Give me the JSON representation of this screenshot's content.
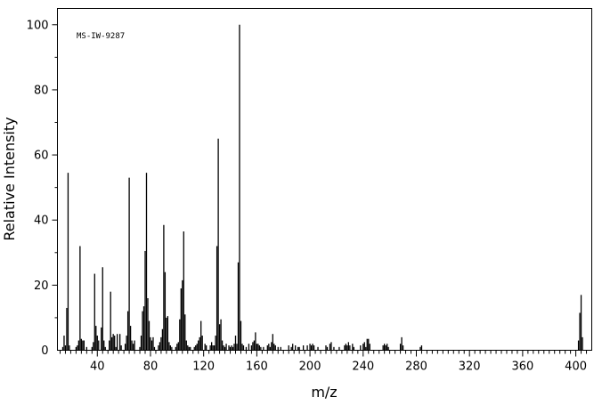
{
  "chart_data": {
    "type": "bar",
    "title": "",
    "annotation": "MS-IW-9287",
    "xlabel": "m/z",
    "ylabel": "Relative Intensity",
    "xlim": [
      10,
      412
    ],
    "ylim": [
      0,
      105
    ],
    "x_ticks": [
      40,
      80,
      120,
      160,
      200,
      240,
      280,
      320,
      360,
      400
    ],
    "x_tick_labels": [
      "40",
      "80",
      "120",
      "160",
      "200",
      "240",
      "280",
      "320",
      "360",
      "400"
    ],
    "y_ticks": [
      0,
      20,
      40,
      60,
      80,
      100
    ],
    "y_tick_labels": [
      "0",
      "20",
      "40",
      "60",
      "80",
      "100"
    ],
    "grid": false,
    "legend": "none",
    "peaks": [
      [
        14,
        1
      ],
      [
        15,
        4.5
      ],
      [
        16,
        1.5
      ],
      [
        17,
        13
      ],
      [
        18,
        54.5
      ],
      [
        19,
        1.5
      ],
      [
        24,
        1
      ],
      [
        25,
        1.5
      ],
      [
        26,
        3
      ],
      [
        27,
        32
      ],
      [
        28,
        3.5
      ],
      [
        29,
        3
      ],
      [
        30,
        3
      ],
      [
        32,
        1
      ],
      [
        36,
        1
      ],
      [
        37,
        2.5
      ],
      [
        38,
        23.5
      ],
      [
        39,
        7.5
      ],
      [
        40,
        4.5
      ],
      [
        41,
        3
      ],
      [
        43,
        7
      ],
      [
        44,
        25.5
      ],
      [
        45,
        3
      ],
      [
        46,
        1
      ],
      [
        49,
        3
      ],
      [
        50,
        18
      ],
      [
        51,
        4
      ],
      [
        52,
        5
      ],
      [
        53,
        4.5
      ],
      [
        54,
        1
      ],
      [
        55,
        5
      ],
      [
        57,
        5
      ],
      [
        58,
        1.5
      ],
      [
        61,
        2
      ],
      [
        62,
        4.5
      ],
      [
        63,
        12
      ],
      [
        64,
        53
      ],
      [
        65,
        7.5
      ],
      [
        66,
        3
      ],
      [
        67,
        2
      ],
      [
        68,
        3
      ],
      [
        72,
        1
      ],
      [
        73,
        4.5
      ],
      [
        74,
        12
      ],
      [
        75,
        13.5
      ],
      [
        76,
        30.5
      ],
      [
        77,
        54.5
      ],
      [
        78,
        16
      ],
      [
        79,
        9
      ],
      [
        80,
        4
      ],
      [
        81,
        3
      ],
      [
        82,
        4
      ],
      [
        83,
        1
      ],
      [
        86,
        1.5
      ],
      [
        87,
        2.5
      ],
      [
        88,
        4
      ],
      [
        89,
        6.5
      ],
      [
        90,
        38.5
      ],
      [
        91,
        24
      ],
      [
        92,
        10
      ],
      [
        93,
        10.5
      ],
      [
        94,
        2.5
      ],
      [
        95,
        1.5
      ],
      [
        96,
        1
      ],
      [
        99,
        1
      ],
      [
        100,
        2
      ],
      [
        101,
        2.5
      ],
      [
        102,
        9.5
      ],
      [
        103,
        19
      ],
      [
        104,
        21.5
      ],
      [
        105,
        36.5
      ],
      [
        106,
        11
      ],
      [
        107,
        3
      ],
      [
        108,
        1.5
      ],
      [
        109,
        1
      ],
      [
        110,
        1
      ],
      [
        113,
        1
      ],
      [
        114,
        1.5
      ],
      [
        115,
        2
      ],
      [
        116,
        3
      ],
      [
        117,
        4
      ],
      [
        118,
        9
      ],
      [
        119,
        4.5
      ],
      [
        121,
        2
      ],
      [
        122,
        1.5
      ],
      [
        125,
        1.5
      ],
      [
        126,
        2.5
      ],
      [
        127,
        1.5
      ],
      [
        128,
        1.5
      ],
      [
        129,
        4.5
      ],
      [
        130,
        32
      ],
      [
        131,
        65
      ],
      [
        132,
        8
      ],
      [
        133,
        9.5
      ],
      [
        134,
        3
      ],
      [
        135,
        1.5
      ],
      [
        136,
        1
      ],
      [
        137,
        2
      ],
      [
        139,
        1.5
      ],
      [
        140,
        1
      ],
      [
        141,
        1.5
      ],
      [
        142,
        1
      ],
      [
        143,
        2
      ],
      [
        144,
        4.5
      ],
      [
        145,
        2
      ],
      [
        146,
        27
      ],
      [
        147,
        100
      ],
      [
        148,
        9
      ],
      [
        149,
        2
      ],
      [
        150,
        1.5
      ],
      [
        152,
        1
      ],
      [
        154,
        2
      ],
      [
        156,
        1.5
      ],
      [
        157,
        2.5
      ],
      [
        158,
        3
      ],
      [
        159,
        5.5
      ],
      [
        160,
        2
      ],
      [
        161,
        2
      ],
      [
        162,
        1.5
      ],
      [
        163,
        1
      ],
      [
        165,
        1
      ],
      [
        168,
        1.5
      ],
      [
        169,
        2
      ],
      [
        170,
        1
      ],
      [
        171,
        2.5
      ],
      [
        172,
        5
      ],
      [
        173,
        2
      ],
      [
        174,
        1.5
      ],
      [
        176,
        1
      ],
      [
        178,
        1
      ],
      [
        184,
        1.5
      ],
      [
        186,
        1
      ],
      [
        187,
        2
      ],
      [
        189,
        1.5
      ],
      [
        191,
        1
      ],
      [
        192,
        1
      ],
      [
        195,
        1.5
      ],
      [
        198,
        1.5
      ],
      [
        200,
        2
      ],
      [
        201,
        1.5
      ],
      [
        202,
        2
      ],
      [
        203,
        1.5
      ],
      [
        206,
        1
      ],
      [
        212,
        1.5
      ],
      [
        213,
        1
      ],
      [
        215,
        2
      ],
      [
        216,
        2.5
      ],
      [
        218,
        1
      ],
      [
        222,
        1
      ],
      [
        226,
        1.5
      ],
      [
        227,
        2
      ],
      [
        228,
        1.5
      ],
      [
        229,
        2.5
      ],
      [
        230,
        1.5
      ],
      [
        232,
        2
      ],
      [
        233,
        1
      ],
      [
        238,
        1.5
      ],
      [
        240,
        2
      ],
      [
        241,
        2.5
      ],
      [
        242,
        1
      ],
      [
        243,
        3.5
      ],
      [
        244,
        3.5
      ],
      [
        245,
        2
      ],
      [
        255,
        1.5
      ],
      [
        256,
        2
      ],
      [
        257,
        1.5
      ],
      [
        258,
        2
      ],
      [
        259,
        1
      ],
      [
        268,
        2
      ],
      [
        269,
        4
      ],
      [
        270,
        1.5
      ],
      [
        283,
        1
      ],
      [
        284,
        1.5
      ],
      [
        402,
        3
      ],
      [
        403,
        11.5
      ],
      [
        404,
        17
      ],
      [
        405,
        4
      ]
    ]
  }
}
